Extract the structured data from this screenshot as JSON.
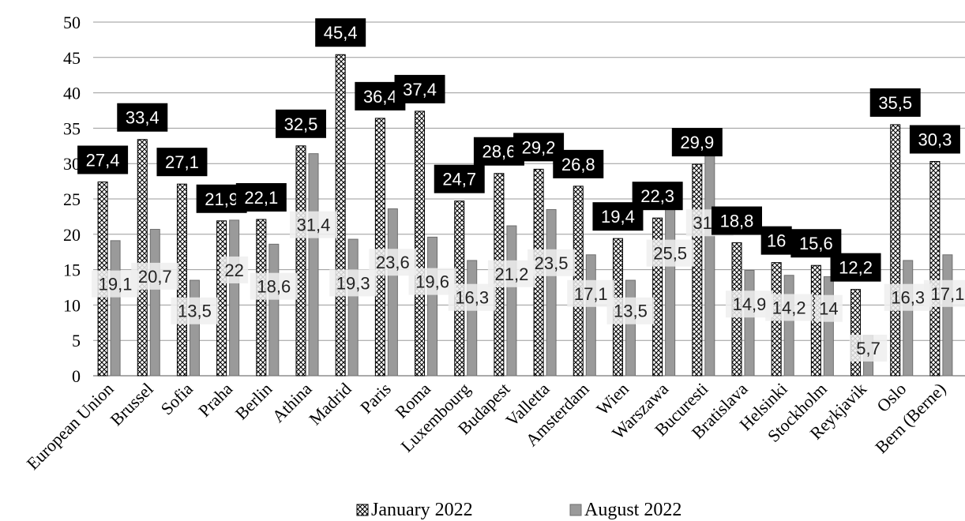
{
  "chart_data": {
    "type": "bar",
    "categories": [
      "European Union",
      "Brussel",
      "Sofia",
      "Praha",
      "Berlin",
      "Athina",
      "Madrid",
      "Paris",
      "Roma",
      "Luxembourg",
      "Budapest",
      "Valletta",
      "Amsterdam",
      "Wien",
      "Warszawa",
      "Bucuresti",
      "Bratislava",
      "Helsinki",
      "Stockholm",
      "Reykjavik",
      "Oslo",
      "Bern (Berne)"
    ],
    "series": [
      {
        "name": "January 2022",
        "values": [
          27.4,
          33.4,
          27.1,
          21.9,
          22.1,
          32.5,
          45.4,
          36.4,
          37.4,
          24.7,
          28.6,
          29.2,
          26.8,
          19.4,
          22.3,
          29.9,
          18.8,
          16,
          15.6,
          12.2,
          35.5,
          30.3
        ]
      },
      {
        "name": "August 2022",
        "values": [
          19.1,
          20.7,
          13.5,
          22,
          18.6,
          31.4,
          19.3,
          23.6,
          19.6,
          16.3,
          21.2,
          23.5,
          17.1,
          13.5,
          25.5,
          31.8,
          14.9,
          14.2,
          14,
          5.7,
          16.3,
          17.1
        ]
      }
    ],
    "data_labels": {
      "January 2022": [
        "27,4",
        "33,4",
        "27,1",
        "21,9",
        "22,1",
        "32,5",
        "45,4",
        "36,4",
        "37,4",
        "24,7",
        "28,6",
        "29,2",
        "26,8",
        "19,4",
        "22,3",
        "29,9",
        "18,8",
        "16",
        "15,6",
        "12,2",
        "35,5",
        "30,3"
      ],
      "August 2022": [
        "19,1",
        "20,7",
        "13,5",
        "22",
        "18,6",
        "31,4",
        "19,3",
        "23,6",
        "19,6",
        "16,3",
        "21,2",
        "23,5",
        "17,1",
        "13,5",
        "25,5",
        "31,8",
        "14,9",
        "14,2",
        "14",
        "5,7",
        "16,3",
        "17,1"
      ]
    },
    "y_ticks": [
      "0",
      "5",
      "10",
      "15",
      "20",
      "25",
      "30",
      "35",
      "40",
      "45",
      "50"
    ],
    "ylim": [
      0,
      50
    ],
    "grid": true,
    "legend": {
      "position": "bottom",
      "items": [
        "January 2022",
        "August 2022"
      ]
    },
    "colors": {
      "january_fill": "#ffffff",
      "january_pattern": "#000000",
      "august_fill": "#9a9a9a",
      "label_jan_bg": "#000000",
      "label_aug_bg": "#eeeeee"
    }
  }
}
